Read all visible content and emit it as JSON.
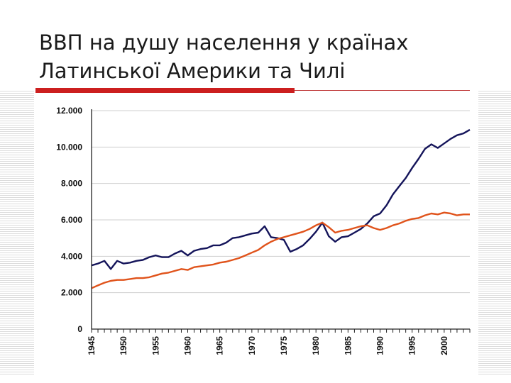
{
  "slide": {
    "title": "ВВП на душу населення у країнах Латинської Америки та Чилі"
  },
  "colors": {
    "accent_red": "#cc1f1f",
    "series_chile": "#14145a",
    "series_latam": "#e0531b"
  },
  "chart_data": {
    "type": "line",
    "title": "",
    "xlabel": "",
    "ylabel": "",
    "xlim": [
      1945,
      2004
    ],
    "ylim": [
      0,
      12000
    ],
    "y_ticks": [
      0,
      2000,
      4000,
      6000,
      8000,
      10000,
      12000
    ],
    "y_tick_labels": [
      "0",
      "2.000",
      "4.000",
      "6.000",
      "8.000",
      "10.000",
      "12.000"
    ],
    "x_ticks": [
      1945,
      1950,
      1955,
      1960,
      1965,
      1970,
      1975,
      1980,
      1985,
      1990,
      1995,
      2000
    ],
    "x_tick_labels": [
      "1945",
      "1950",
      "1955",
      "1960",
      "1965",
      "1970",
      "1975",
      "1980",
      "1985",
      "1990",
      "1995",
      "2000"
    ],
    "grid": "horizontal",
    "legend": "none",
    "series": [
      {
        "color": "#14145a",
        "points": [
          [
            1945,
            3500
          ],
          [
            1946,
            3600
          ],
          [
            1947,
            3750
          ],
          [
            1948,
            3300
          ],
          [
            1949,
            3750
          ],
          [
            1950,
            3600
          ],
          [
            1951,
            3650
          ],
          [
            1952,
            3750
          ],
          [
            1953,
            3800
          ],
          [
            1954,
            3950
          ],
          [
            1955,
            4050
          ],
          [
            1956,
            3950
          ],
          [
            1957,
            3950
          ],
          [
            1958,
            4150
          ],
          [
            1959,
            4300
          ],
          [
            1960,
            4050
          ],
          [
            1961,
            4300
          ],
          [
            1962,
            4400
          ],
          [
            1963,
            4450
          ],
          [
            1964,
            4600
          ],
          [
            1965,
            4600
          ],
          [
            1966,
            4750
          ],
          [
            1967,
            5000
          ],
          [
            1968,
            5050
          ],
          [
            1969,
            5150
          ],
          [
            1970,
            5250
          ],
          [
            1971,
            5300
          ],
          [
            1972,
            5650
          ],
          [
            1973,
            5050
          ],
          [
            1974,
            5000
          ],
          [
            1975,
            4900
          ],
          [
            1976,
            4250
          ],
          [
            1977,
            4400
          ],
          [
            1978,
            4600
          ],
          [
            1979,
            4950
          ],
          [
            1980,
            5350
          ],
          [
            1981,
            5850
          ],
          [
            1982,
            5100
          ],
          [
            1983,
            4800
          ],
          [
            1984,
            5050
          ],
          [
            1985,
            5100
          ],
          [
            1986,
            5300
          ],
          [
            1987,
            5500
          ],
          [
            1988,
            5800
          ],
          [
            1989,
            6200
          ],
          [
            1990,
            6350
          ],
          [
            1991,
            6800
          ],
          [
            1992,
            7400
          ],
          [
            1993,
            7850
          ],
          [
            1994,
            8300
          ],
          [
            1995,
            8850
          ],
          [
            1996,
            9350
          ],
          [
            1997,
            9900
          ],
          [
            1998,
            10150
          ],
          [
            1999,
            9950
          ],
          [
            2000,
            10200
          ],
          [
            2001,
            10450
          ],
          [
            2002,
            10650
          ],
          [
            2003,
            10750
          ],
          [
            2004,
            10950
          ]
        ]
      },
      {
        "color": "#e0531b",
        "points": [
          [
            1945,
            2250
          ],
          [
            1946,
            2400
          ],
          [
            1947,
            2550
          ],
          [
            1948,
            2650
          ],
          [
            1949,
            2700
          ],
          [
            1950,
            2700
          ],
          [
            1951,
            2750
          ],
          [
            1952,
            2800
          ],
          [
            1953,
            2800
          ],
          [
            1954,
            2850
          ],
          [
            1955,
            2950
          ],
          [
            1956,
            3050
          ],
          [
            1957,
            3100
          ],
          [
            1958,
            3200
          ],
          [
            1959,
            3300
          ],
          [
            1960,
            3250
          ],
          [
            1961,
            3400
          ],
          [
            1962,
            3450
          ],
          [
            1963,
            3500
          ],
          [
            1964,
            3550
          ],
          [
            1965,
            3650
          ],
          [
            1966,
            3700
          ],
          [
            1967,
            3800
          ],
          [
            1968,
            3900
          ],
          [
            1969,
            4050
          ],
          [
            1970,
            4200
          ],
          [
            1971,
            4350
          ],
          [
            1972,
            4600
          ],
          [
            1973,
            4800
          ],
          [
            1974,
            4950
          ],
          [
            1975,
            5050
          ],
          [
            1976,
            5150
          ],
          [
            1977,
            5250
          ],
          [
            1978,
            5350
          ],
          [
            1979,
            5500
          ],
          [
            1980,
            5700
          ],
          [
            1981,
            5850
          ],
          [
            1982,
            5600
          ],
          [
            1983,
            5300
          ],
          [
            1984,
            5400
          ],
          [
            1985,
            5450
          ],
          [
            1986,
            5550
          ],
          [
            1987,
            5650
          ],
          [
            1988,
            5700
          ],
          [
            1989,
            5550
          ],
          [
            1990,
            5450
          ],
          [
            1991,
            5550
          ],
          [
            1992,
            5700
          ],
          [
            1993,
            5800
          ],
          [
            1994,
            5950
          ],
          [
            1995,
            6050
          ],
          [
            1996,
            6100
          ],
          [
            1997,
            6250
          ],
          [
            1998,
            6350
          ],
          [
            1999,
            6300
          ],
          [
            2000,
            6400
          ],
          [
            2001,
            6350
          ],
          [
            2002,
            6250
          ],
          [
            2003,
            6300
          ],
          [
            2004,
            6300
          ]
        ]
      }
    ]
  }
}
